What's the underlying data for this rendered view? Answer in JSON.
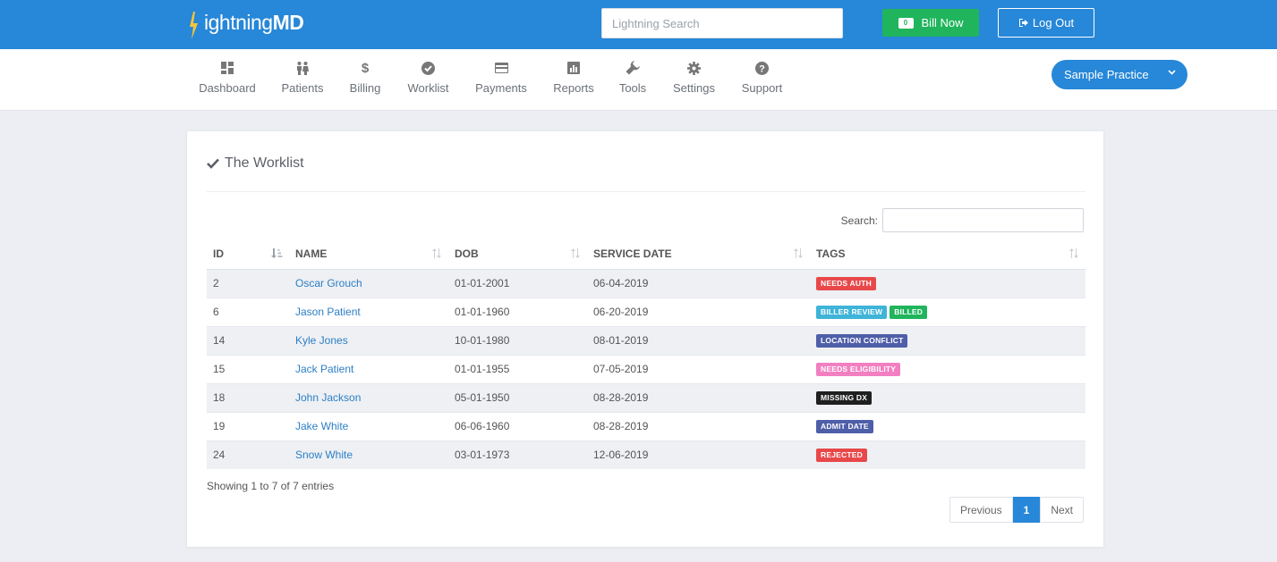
{
  "app": {
    "logo_prefix": "ightning",
    "logo_suffix": "MD"
  },
  "topbar": {
    "search_placeholder": "Lightning Search",
    "bill_count": "0",
    "bill_label": "Bill Now",
    "logout_label": "Log Out"
  },
  "nav": {
    "items": [
      {
        "label": "Dashboard",
        "icon": "dashboard-icon"
      },
      {
        "label": "Patients",
        "icon": "patients-icon"
      },
      {
        "label": "Billing",
        "icon": "dollar-icon"
      },
      {
        "label": "Worklist",
        "icon": "check-circle-icon"
      },
      {
        "label": "Payments",
        "icon": "credit-card-icon"
      },
      {
        "label": "Reports",
        "icon": "bar-chart-icon"
      },
      {
        "label": "Tools",
        "icon": "wrench-icon"
      },
      {
        "label": "Settings",
        "icon": "gear-icon"
      },
      {
        "label": "Support",
        "icon": "question-circle-icon"
      }
    ],
    "practice_label": "Sample Practice"
  },
  "worklist": {
    "title": "The Worklist",
    "search_label": "Search:",
    "search_value": "",
    "columns": [
      "ID",
      "NAME",
      "DOB",
      "SERVICE DATE",
      "TAGS"
    ],
    "rows": [
      {
        "id": "2",
        "name": "Oscar Grouch",
        "dob": "01-01-2001",
        "service_date": "06-04-2019",
        "tags": [
          {
            "label": "NEEDS AUTH",
            "color": "#e8484a"
          }
        ]
      },
      {
        "id": "6",
        "name": "Jason Patient",
        "dob": "01-01-1960",
        "service_date": "06-20-2019",
        "tags": [
          {
            "label": "BILLER REVIEW",
            "color": "#3fb4d8"
          },
          {
            "label": "BILLED",
            "color": "#20b55c"
          }
        ]
      },
      {
        "id": "14",
        "name": "Kyle Jones",
        "dob": "10-01-1980",
        "service_date": "08-01-2019",
        "tags": [
          {
            "label": "LOCATION CONFLICT",
            "color": "#4f5ea8"
          }
        ]
      },
      {
        "id": "15",
        "name": "Jack Patient",
        "dob": "01-01-1955",
        "service_date": "07-05-2019",
        "tags": [
          {
            "label": "NEEDS ELIGIBILITY",
            "color": "#f27fc1"
          }
        ]
      },
      {
        "id": "18",
        "name": "John Jackson",
        "dob": "05-01-1950",
        "service_date": "08-28-2019",
        "tags": [
          {
            "label": "MISSING DX",
            "color": "#1f1f1f"
          }
        ]
      },
      {
        "id": "19",
        "name": "Jake White",
        "dob": "06-06-1960",
        "service_date": "08-28-2019",
        "tags": [
          {
            "label": "ADMIT DATE",
            "color": "#4f5ea8"
          }
        ]
      },
      {
        "id": "24",
        "name": "Snow White",
        "dob": "03-01-1973",
        "service_date": "12-06-2019",
        "tags": [
          {
            "label": "REJECTED",
            "color": "#e8484a"
          }
        ]
      }
    ],
    "info": "Showing 1 to 7 of 7 entries",
    "pagination": {
      "previous": "Previous",
      "current": "1",
      "next": "Next"
    }
  },
  "colors": {
    "brand": "#2787d8",
    "success": "#20b55c",
    "link": "#2c7fc5"
  }
}
